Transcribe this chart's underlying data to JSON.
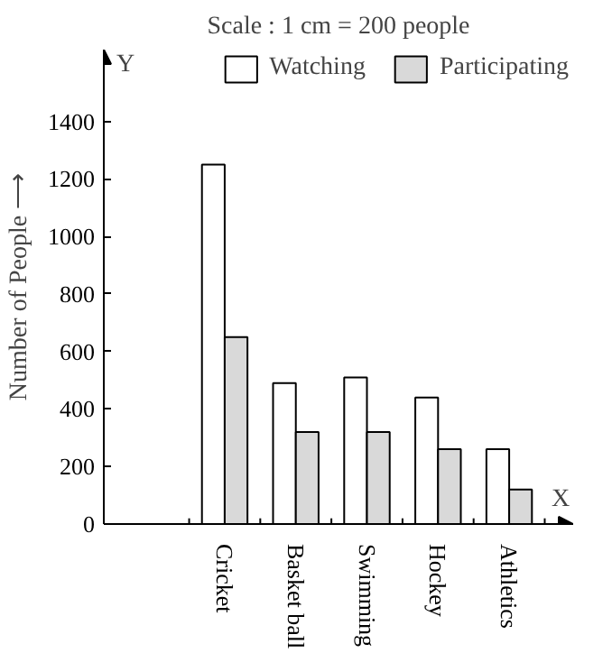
{
  "chart_data": {
    "type": "bar",
    "annotations": [
      "Scale : 1 cm = 200 people",
      "Y"
    ],
    "xlabel": "X",
    "ylabel": "Number of People ⟶",
    "categories": [
      "Cricket",
      "Basket ball",
      "Swimming",
      "Hockey",
      "Athletics"
    ],
    "series": [
      {
        "name": "Watching",
        "color": "#ffffff",
        "values": [
          1250,
          490,
          510,
          440,
          260
        ]
      },
      {
        "name": "Participating",
        "color": "#d9d9d9",
        "values": [
          650,
          320,
          320,
          260,
          120
        ]
      }
    ],
    "ylim": [
      0,
      1650
    ],
    "yticks": [
      0,
      200,
      400,
      600,
      800,
      1000,
      1200,
      1400
    ],
    "grid": false,
    "legend": "top"
  }
}
